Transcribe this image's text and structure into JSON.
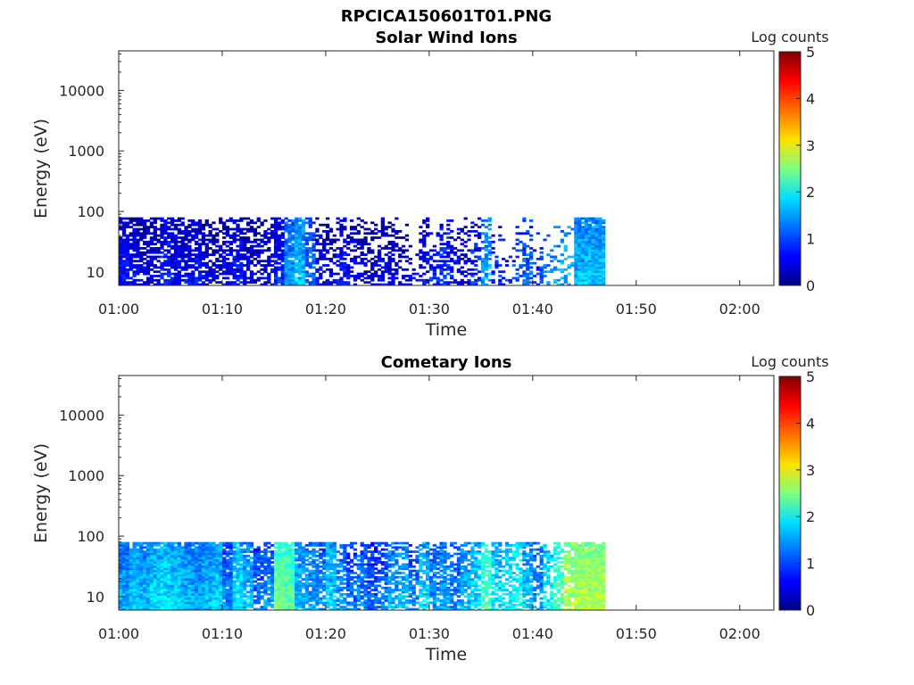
{
  "figure_title": "RPCICA150601T01.PNG",
  "chart_data": [
    {
      "type": "heatmap",
      "title": "Solar Wind Ions",
      "xlabel": "Time",
      "ylabel": "Energy (eV)",
      "x_ticks": [
        "01:00",
        "01:10",
        "01:20",
        "01:30",
        "01:40",
        "01:50",
        "02:00"
      ],
      "x_range_minutes": [
        0,
        63.3
      ],
      "y_scale": "log",
      "y_ticks": [
        10,
        100,
        1000,
        10000
      ],
      "y_tick_labels": [
        "10",
        "100",
        "1000",
        "10000"
      ],
      "y_range": [
        6,
        45000
      ],
      "data_energy_range": [
        6,
        80
      ],
      "data_time_end": "01:47",
      "colorbar": {
        "label": "Log counts",
        "ticks": [
          0,
          1,
          2,
          3,
          4,
          5
        ],
        "range": [
          0,
          5
        ],
        "colormap": "jet"
      },
      "column_intensity": [
        0.7,
        0.6,
        0.5,
        0.5,
        0.8,
        0.6,
        0.6,
        0.7,
        0.5,
        0.4,
        0.6,
        0.7,
        0.5,
        0.5,
        0.6,
        0.8,
        1.4,
        1.6,
        1.2,
        0.6,
        0.5,
        0.7,
        0.6,
        0.5,
        0.4,
        0.6,
        0.5,
        0.4,
        0.5,
        0.7,
        0.8,
        0.9,
        0.7,
        0.6,
        0.9,
        1.5,
        0.8,
        0.8,
        1.0,
        1.2,
        1.0,
        1.3,
        1.5,
        1.6,
        1.6,
        1.6,
        1.6
      ],
      "column_density": [
        0.9,
        0.8,
        0.8,
        0.7,
        0.8,
        0.8,
        0.7,
        0.7,
        0.7,
        0.6,
        0.7,
        0.8,
        0.7,
        0.6,
        0.6,
        0.8,
        0.9,
        0.9,
        0.7,
        0.6,
        0.6,
        0.7,
        0.6,
        0.6,
        0.5,
        0.6,
        0.6,
        0.5,
        0.3,
        0.6,
        0.5,
        0.6,
        0.5,
        0.5,
        0.6,
        0.6,
        0.4,
        0.3,
        0.4,
        0.6,
        0.3,
        0.3,
        0.4,
        0.4,
        1.0,
        1.0,
        1.0
      ],
      "high_energy_bias": 0.5
    },
    {
      "type": "heatmap",
      "title": "Cometary Ions",
      "xlabel": "Time",
      "ylabel": "Energy (eV)",
      "x_ticks": [
        "01:00",
        "01:10",
        "01:20",
        "01:30",
        "01:40",
        "01:50",
        "02:00"
      ],
      "x_range_minutes": [
        0,
        63.3
      ],
      "y_scale": "log",
      "y_ticks": [
        10,
        100,
        1000,
        10000
      ],
      "y_tick_labels": [
        "10",
        "100",
        "1000",
        "10000"
      ],
      "y_range": [
        6,
        45000
      ],
      "data_energy_range": [
        6,
        80
      ],
      "data_time_end": "01:47",
      "colorbar": {
        "label": "Log counts",
        "ticks": [
          0,
          1,
          2,
          3,
          4,
          5
        ],
        "range": [
          0,
          5
        ],
        "colormap": "jet"
      },
      "column_intensity": [
        1.5,
        1.7,
        1.6,
        1.7,
        1.8,
        1.7,
        1.6,
        1.5,
        1.6,
        1.7,
        1.3,
        1.8,
        1.6,
        1.2,
        1.4,
        2.5,
        2.4,
        1.6,
        1.5,
        1.4,
        1.7,
        1.4,
        1.2,
        1.3,
        1.1,
        1.2,
        1.5,
        1.6,
        1.3,
        1.7,
        1.4,
        1.5,
        1.3,
        1.6,
        1.8,
        2.3,
        1.8,
        1.9,
        2.0,
        1.7,
        1.4,
        1.9,
        2.3,
        2.8,
        2.8,
        2.8,
        2.8
      ],
      "column_density": [
        1.0,
        1.0,
        1.0,
        1.0,
        1.0,
        1.0,
        1.0,
        1.0,
        1.0,
        1.0,
        0.9,
        0.9,
        0.9,
        0.8,
        0.8,
        1.0,
        1.0,
        0.9,
        0.8,
        0.8,
        0.8,
        0.7,
        0.7,
        0.7,
        0.7,
        0.7,
        0.7,
        0.7,
        0.6,
        0.8,
        0.7,
        0.8,
        0.7,
        0.8,
        0.8,
        0.8,
        0.7,
        0.7,
        0.8,
        0.8,
        0.6,
        0.6,
        0.7,
        0.8,
        1.0,
        1.0,
        1.0
      ],
      "high_energy_bias": 0.2
    }
  ]
}
